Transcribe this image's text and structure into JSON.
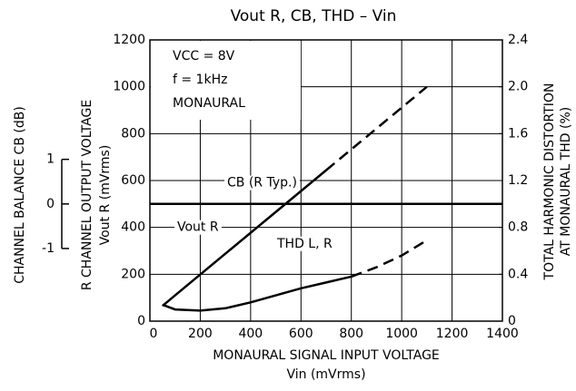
{
  "chart_data": {
    "type": "line",
    "title": "Vout R, CB, THD – Vin",
    "x_label": "MONAURAL SIGNAL INPUT VOLTAGE",
    "x_unit_label": "Vin (mVrms)",
    "y_label": "R CHANNEL OUTPUT VOLTAGE",
    "y_unit_label": "Vout R (mVrms)",
    "y3_label": "CHANNEL BALANCE   CB   (dB)",
    "y2_label": "TOTAL HARMONIC DISTORTION",
    "y2_unit_label": "AT MONAURAL   THD   (%)",
    "annotations": [
      "VCC = 8V",
      "f = 1kHz",
      "MONAURAL"
    ],
    "xlim": [
      0,
      1400
    ],
    "xticks": [
      0,
      200,
      400,
      600,
      800,
      1000,
      1200,
      1400
    ],
    "ylim": [
      0,
      1200
    ],
    "yticks": [
      0,
      200,
      400,
      600,
      800,
      1000,
      1200
    ],
    "y2lim": [
      0,
      2.4
    ],
    "y2ticks": [
      0,
      0.4,
      0.8,
      1.2,
      1.6,
      {
        "value": 2,
        "label": "2.0"
      },
      2.4
    ],
    "y3lim": [
      -2.63,
      3.68
    ],
    "y3ticks": [
      -1,
      0,
      1
    ],
    "grid": true,
    "series": [
      {
        "name": "Vout R",
        "color": "#000000",
        "dashed_from": 700,
        "x": [
          50,
          100,
          200,
          300,
          400,
          500,
          600,
          700,
          800,
          900,
          1000,
          1100
        ],
        "values": [
          65,
          110,
          199,
          288,
          377,
          466,
          555,
          644,
          733,
          822,
          911,
          1000
        ]
      },
      {
        "name": "THD L, R",
        "color": "#000000",
        "axis": "y2",
        "dashed_from": 800,
        "x": [
          50,
          100,
          200,
          300,
          400,
          500,
          600,
          700,
          800,
          900,
          1000,
          1100
        ],
        "values": [
          0.14,
          0.1,
          0.09,
          0.11,
          0.16,
          0.22,
          0.28,
          0.33,
          0.38,
          0.46,
          0.56,
          0.69
        ]
      },
      {
        "name": "CB (R Typ.)",
        "color": "#000000",
        "axis": "y3",
        "x": [
          0,
          1400
        ],
        "values": [
          0,
          0
        ]
      }
    ]
  }
}
